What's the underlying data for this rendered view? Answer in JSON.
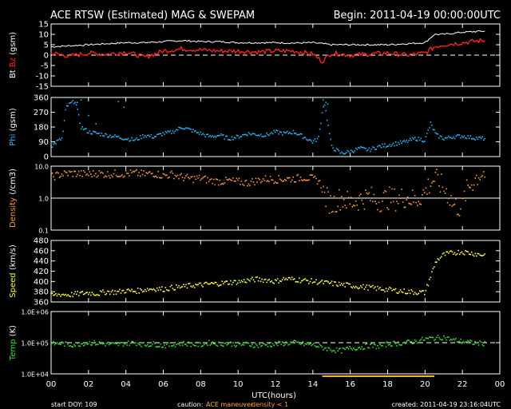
{
  "header": {
    "title": "ACE RTSW (Estimated) MAG & SWEPAM",
    "begin": "Begin: 2011-04-19 00:00:00UTC"
  },
  "footer": {
    "start_doy": "start DOY: 109",
    "caution_prefix": "caution:",
    "caution_maneuver": "ACE maneuver",
    "caution_density": "density < 1",
    "created": "created: 2011-04-19 23:16:04UTC"
  },
  "colors": {
    "bt": "#ffffff",
    "bz": "#ff2020",
    "phi": "#20b8ff",
    "density": "#ff9a30",
    "speed": "#ffff30",
    "temp": "#30e030",
    "maneuver": "#ffb020"
  },
  "chart_data": [
    {
      "type": "line",
      "name": "mag",
      "ylabel_parts": [
        "Bt",
        "Bz",
        "(gsm)"
      ],
      "ylim": [
        -15,
        15
      ],
      "ticks": [
        "15",
        "10",
        "5",
        "0",
        "-5",
        "-10",
        "-15"
      ],
      "tick_values": [
        15,
        10,
        5,
        0,
        -5,
        -10,
        -15
      ],
      "dashed_ref": 0,
      "series": [
        {
          "name": "Bt",
          "x": [
            0,
            1,
            2,
            3,
            4,
            5,
            6,
            7,
            8,
            9,
            10,
            11,
            12,
            13,
            14,
            15,
            16,
            17,
            18,
            19,
            20,
            20.5,
            21,
            22,
            23
          ],
          "values": [
            4,
            4.5,
            5,
            5.5,
            6,
            6,
            6.5,
            7,
            6.5,
            6.5,
            6,
            6,
            6,
            5.8,
            6,
            5,
            5,
            5,
            5,
            5.5,
            6,
            10,
            10,
            11,
            11.5
          ]
        },
        {
          "name": "Bz",
          "x": [
            0,
            1,
            2,
            3,
            4,
            5,
            6,
            7,
            8,
            9,
            10,
            11,
            12,
            13,
            14,
            14.5,
            15,
            16,
            17,
            18,
            19,
            20,
            20.5,
            21,
            22,
            23
          ],
          "values": [
            1,
            -0.5,
            1,
            0.5,
            1.5,
            -1,
            2,
            3,
            2.5,
            2,
            2,
            1.5,
            2,
            2,
            0.5,
            -3,
            1,
            0,
            0.5,
            1,
            0,
            1,
            4,
            5,
            6,
            7
          ]
        }
      ]
    },
    {
      "type": "scatter",
      "name": "phi",
      "ylabel": "Phi (gsm)",
      "ylim": [
        0,
        360
      ],
      "ticks": [
        "360",
        "270",
        "180",
        "90",
        "0"
      ],
      "tick_values": [
        360,
        270,
        180,
        90,
        0
      ],
      "series": [
        {
          "name": "Phi",
          "x": [
            0,
            0.3,
            0.6,
            0.8,
            1.0,
            1.3,
            1.6,
            2.0,
            2.5,
            3.0,
            3.5,
            4.0,
            4.5,
            5.0,
            5.5,
            6.0,
            6.5,
            7.0,
            7.5,
            8.0,
            8.5,
            9.0,
            9.5,
            10.0,
            10.5,
            11.0,
            11.5,
            12.0,
            12.5,
            13.0,
            13.5,
            14.0,
            14.3,
            14.6,
            15.0,
            15.5,
            16.0,
            16.5,
            17.0,
            17.5,
            18.0,
            18.5,
            19.0,
            19.5,
            20.0,
            20.3,
            20.6,
            21.0,
            21.5,
            22.0,
            22.5,
            23.0
          ],
          "values": [
            60,
            90,
            110,
            300,
            320,
            340,
            180,
            150,
            140,
            130,
            120,
            110,
            100,
            130,
            120,
            140,
            150,
            180,
            160,
            140,
            120,
            130,
            110,
            120,
            140,
            135,
            130,
            150,
            140,
            150,
            120,
            90,
            110,
            340,
            60,
            20,
            30,
            50,
            40,
            60,
            70,
            80,
            90,
            110,
            100,
            200,
            130,
            110,
            120,
            125,
            115,
            110
          ],
          "extra": [
            [
              1.4,
              330
            ],
            [
              1.6,
              345
            ],
            [
              2.0,
              250
            ],
            [
              2.4,
              200
            ],
            [
              3.6,
              335
            ],
            [
              3.9,
              300
            ],
            [
              14.55,
              345
            ],
            [
              14.7,
              330
            ],
            [
              14.8,
              320
            ]
          ]
        }
      ]
    },
    {
      "type": "scatter",
      "name": "density",
      "ylabel": "Density (/cm3)",
      "scale": "log",
      "ylim": [
        0.1,
        10.0
      ],
      "ticks": [
        "10.0",
        "1.0",
        "0.1"
      ],
      "tick_values": [
        10.0,
        1.0,
        0.1
      ],
      "solid_ref": 1.0,
      "series": [
        {
          "name": "Density",
          "x": [
            0,
            0.5,
            1,
            1.5,
            2,
            2.5,
            3,
            3.5,
            4,
            4.5,
            5,
            5.5,
            6,
            6.5,
            7,
            7.5,
            8,
            8.5,
            9,
            9.5,
            10,
            10.5,
            11,
            11.5,
            12,
            12.5,
            13,
            13.5,
            14,
            14.3,
            14.6,
            15,
            15.5,
            16,
            16.5,
            17,
            17.5,
            18,
            18.5,
            19,
            19.5,
            20,
            20.5,
            21,
            21.5,
            22,
            22.5,
            23
          ],
          "values": [
            4.5,
            5.5,
            6,
            5.8,
            5.5,
            6,
            5.5,
            5.8,
            5.8,
            6,
            5.5,
            6,
            5,
            5.5,
            4.5,
            4,
            4.2,
            3.5,
            3.3,
            3.5,
            3.2,
            3,
            3.5,
            4,
            3.8,
            4,
            4,
            4.5,
            4,
            3.5,
            1.2,
            0.6,
            1.0,
            0.7,
            0.9,
            1.1,
            0.8,
            1.0,
            0.9,
            1.1,
            0.8,
            1.5,
            4,
            2,
            0.6,
            0.5,
            3,
            6
          ]
        }
      ]
    },
    {
      "type": "scatter",
      "name": "speed",
      "ylabel": "Speed (km/s)",
      "ylim": [
        360,
        480
      ],
      "ticks": [
        "480",
        "460",
        "440",
        "420",
        "400",
        "380",
        "360"
      ],
      "tick_values": [
        480,
        460,
        440,
        420,
        400,
        380,
        360
      ],
      "series": [
        {
          "name": "Speed",
          "x": [
            0,
            0.5,
            1,
            1.5,
            2,
            2.5,
            3,
            3.5,
            4,
            4.5,
            5,
            5.5,
            6,
            6.5,
            7,
            7.5,
            8,
            8.5,
            9,
            9.5,
            10,
            10.5,
            11,
            11.5,
            12,
            12.5,
            13,
            13.5,
            14,
            14.5,
            15,
            15.5,
            16,
            16.5,
            17,
            17.5,
            18,
            18.5,
            19,
            19.5,
            20,
            20.3,
            20.6,
            21,
            21.5,
            22,
            22.5,
            23
          ],
          "values": [
            372,
            375,
            374,
            376,
            378,
            376,
            380,
            379,
            382,
            381,
            384,
            386,
            385,
            388,
            389,
            392,
            393,
            395,
            396,
            398,
            399,
            402,
            404,
            403,
            400,
            405,
            404,
            402,
            400,
            398,
            396,
            394,
            392,
            390,
            388,
            386,
            384,
            382,
            380,
            379,
            378,
            410,
            440,
            452,
            456,
            458,
            455,
            452
          ]
        }
      ]
    },
    {
      "type": "scatter",
      "name": "temp",
      "ylabel": "Temp (K)",
      "scale": "log",
      "ylim": [
        10000,
        1000000
      ],
      "ticks": [
        "1.0E+06",
        "1.0E+05",
        "1.0E+04"
      ],
      "tick_values": [
        1000000,
        100000,
        10000
      ],
      "dashed_ref": 100000,
      "series": [
        {
          "name": "Temp",
          "x": [
            0,
            0.5,
            1,
            1.5,
            2,
            2.5,
            3,
            3.5,
            4,
            4.5,
            5,
            5.5,
            6,
            6.5,
            7,
            7.5,
            8,
            8.5,
            9,
            9.5,
            10,
            10.5,
            11,
            11.5,
            12,
            12.5,
            13,
            13.5,
            14,
            14.5,
            15,
            15.5,
            16,
            16.5,
            17,
            17.5,
            18,
            18.5,
            19,
            19.5,
            20,
            20.5,
            21,
            21.5,
            22,
            22.5,
            23
          ],
          "values": [
            90000,
            95000,
            85000,
            90000,
            100000,
            95000,
            90000,
            85000,
            95000,
            100000,
            85000,
            90000,
            80000,
            85000,
            95000,
            90000,
            85000,
            100000,
            90000,
            95000,
            85000,
            90000,
            80000,
            85000,
            90000,
            95000,
            100000,
            90000,
            85000,
            70000,
            60000,
            55000,
            65000,
            70000,
            80000,
            75000,
            90000,
            95000,
            100000,
            110000,
            130000,
            140000,
            150000,
            120000,
            110000,
            100000,
            95000
          ]
        }
      ]
    }
  ],
  "xaxis": {
    "label": "UTC(hours)",
    "xlim": [
      0,
      24
    ],
    "ticks": [
      "00",
      "02",
      "04",
      "06",
      "08",
      "10",
      "12",
      "14",
      "16",
      "18",
      "20",
      "22",
      "00"
    ],
    "tick_values": [
      0,
      2,
      4,
      6,
      8,
      10,
      12,
      14,
      16,
      18,
      20,
      22,
      24
    ]
  },
  "maneuver_x": [
    [
      14.5,
      20.5
    ]
  ]
}
